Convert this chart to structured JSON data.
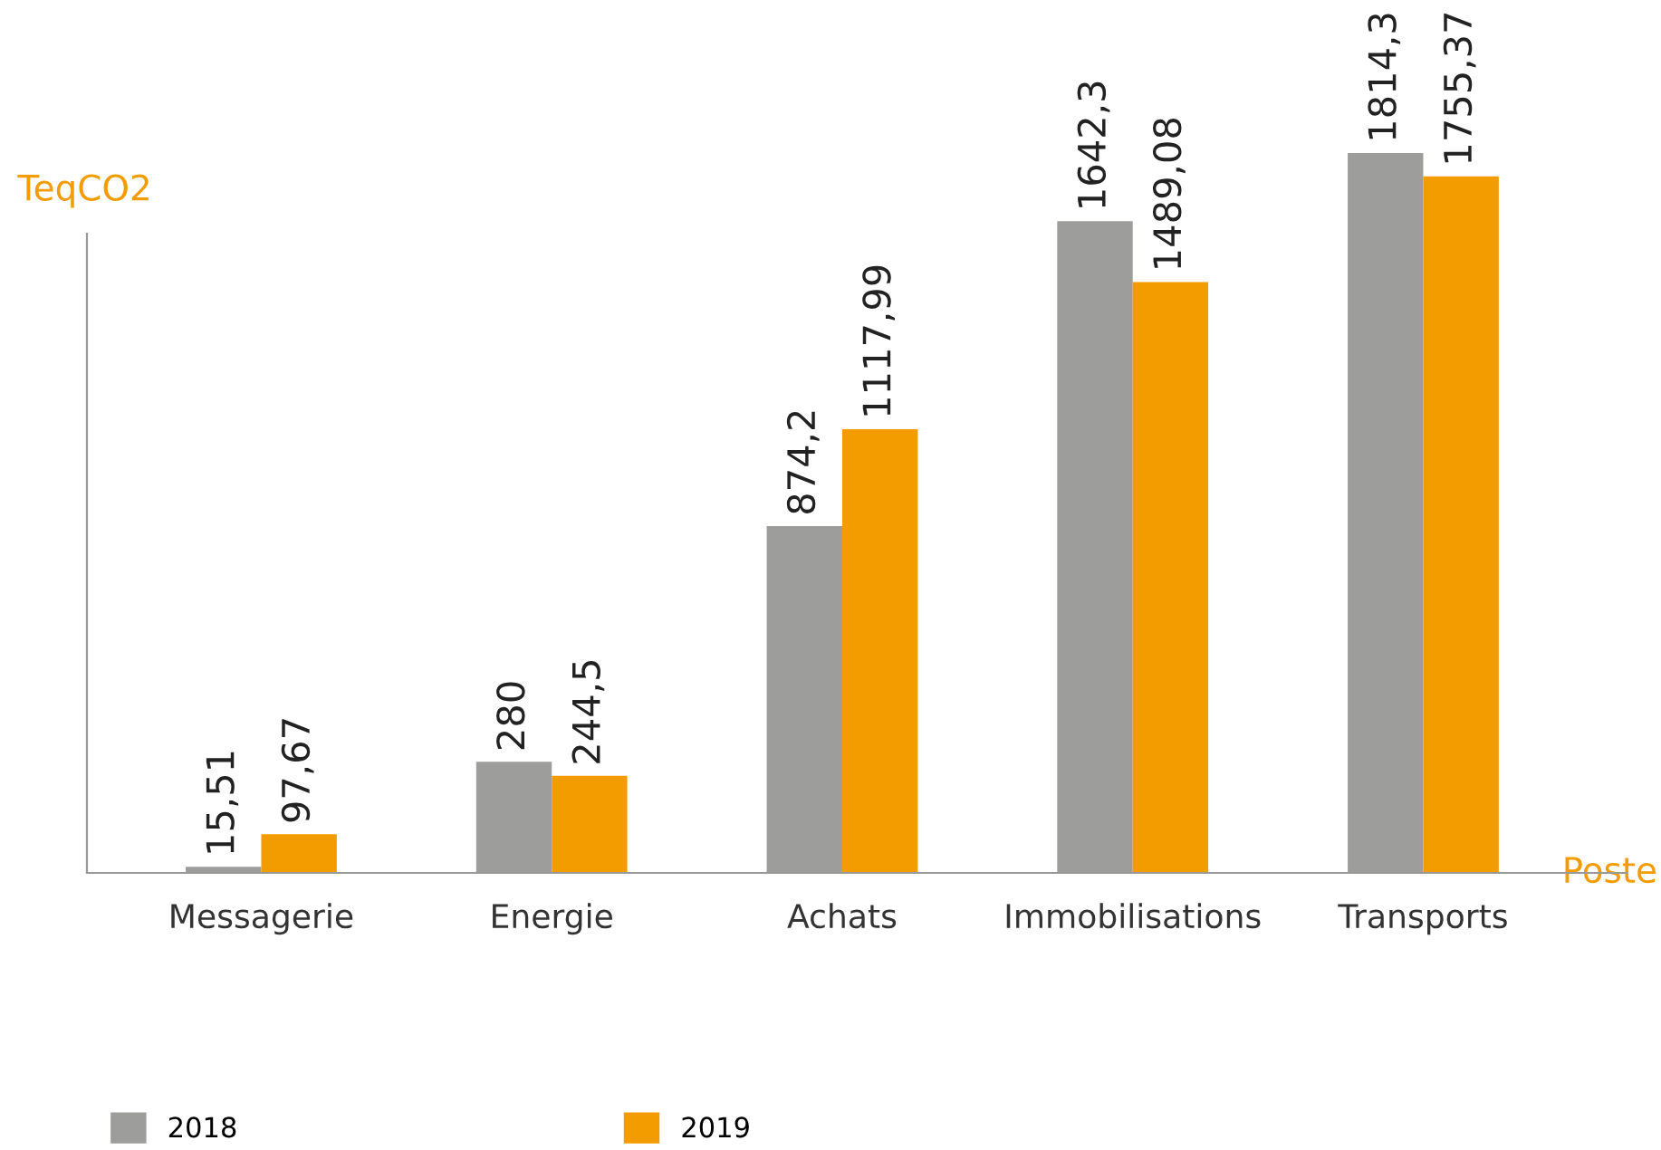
{
  "chart_data": {
    "type": "bar",
    "ylabel": "TeqCO2",
    "xlabel": "Poste",
    "categories": [
      "Messagerie",
      "Energie",
      "Achats",
      "Immobilisations",
      "Transports"
    ],
    "series": [
      {
        "name": "2018",
        "color": "#9d9d9c",
        "values": [
          15.51,
          280,
          874.2,
          1642.3,
          1814.3
        ],
        "value_labels": [
          "15,51",
          "280",
          "874,2",
          "1642,3",
          "1814,3"
        ]
      },
      {
        "name": "2019",
        "color": "#f39c00",
        "values": [
          97.67,
          244.5,
          1117.99,
          1489.08,
          1755.37
        ],
        "value_labels": [
          "97,67",
          "244,5",
          "1117,99",
          "1489,08",
          "1755,37"
        ]
      }
    ],
    "tick_labels": "x",
    "grid": false,
    "legend": "bottom left"
  }
}
